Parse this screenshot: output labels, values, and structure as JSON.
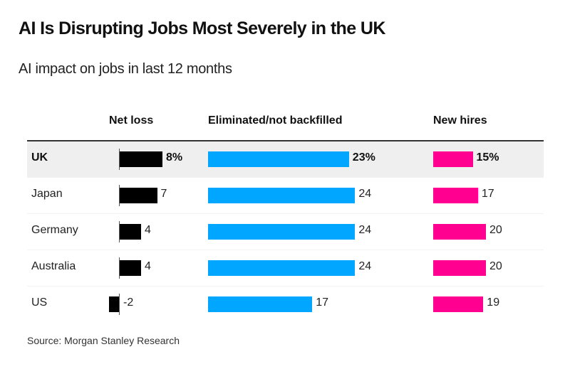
{
  "header": {
    "title": "AI Is Disrupting Jobs Most Severely in the UK",
    "subtitle": "AI impact on jobs in last 12 months"
  },
  "source": "Source: Morgan Stanley Research",
  "chart_data": {
    "type": "bar",
    "orientation": "horizontal",
    "title": "AI Is Disrupting Jobs Most Severely in the UK",
    "subtitle": "AI impact on jobs in last 12 months",
    "unit": "%",
    "categories": [
      "UK",
      "Japan",
      "Germany",
      "Australia",
      "US"
    ],
    "highlighted_category": "UK",
    "series": [
      {
        "key": "net",
        "name": "Net loss",
        "color": "#000000",
        "values": [
          8,
          7,
          4,
          4,
          -2
        ],
        "labels": [
          "8%",
          "7",
          "4",
          "4",
          "-2"
        ]
      },
      {
        "key": "elim",
        "name": "Eliminated/not backfilled",
        "color": "#00a6ff",
        "values": [
          23,
          24,
          24,
          24,
          17
        ],
        "labels": [
          "23%",
          "24",
          "24",
          "24",
          "17"
        ]
      },
      {
        "key": "hire",
        "name": "New hires",
        "color": "#ff0090",
        "values": [
          15,
          17,
          20,
          20,
          19
        ],
        "labels": [
          "15%",
          "17",
          "20",
          "20",
          "19"
        ]
      }
    ],
    "grid": false,
    "legend": "column-headers-top",
    "source": "Source: Morgan Stanley Research"
  }
}
